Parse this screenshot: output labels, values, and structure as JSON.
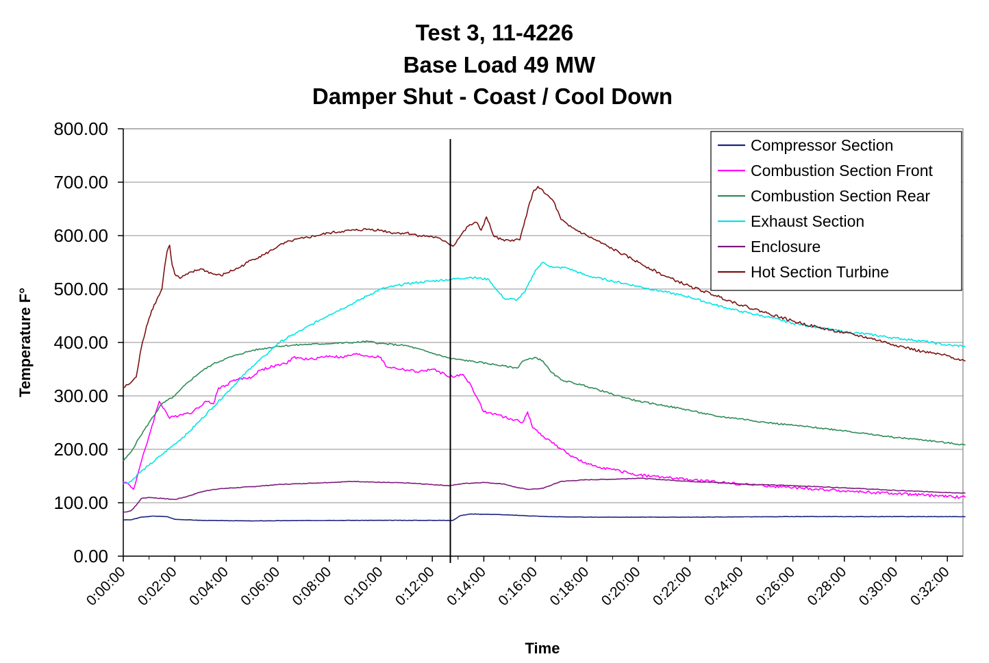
{
  "chart_data": {
    "type": "line",
    "title_lines": [
      "Test 3, 11-4226",
      "Base Load 49 MW",
      "Damper Shut - Coast / Cool Down"
    ],
    "xlabel": "Time",
    "ylabel": "Temperature F°",
    "ylim": [
      0,
      800
    ],
    "y_ticks": [
      "0.00",
      "100.00",
      "200.00",
      "300.00",
      "400.00",
      "500.00",
      "600.00",
      "700.00",
      "800.00"
    ],
    "x_range_minutes": [
      0,
      32.7
    ],
    "x_ticks": [
      "0:00:00",
      "0:02:00",
      "0:04:00",
      "0:06:00",
      "0:08:00",
      "0:10:00",
      "0:12:00",
      "0:14:00",
      "0:16:00",
      "0:18:00",
      "0:20:00",
      "0:22:00",
      "0:24:00",
      "0:26:00",
      "0:28:00",
      "0:30:00",
      "0:32:00"
    ],
    "grid": "horizontal",
    "legend_position": "top-right",
    "vertical_marker_x_minutes": 12.7,
    "series": [
      {
        "name": "Compressor Section",
        "color": "#1a237e",
        "points": [
          [
            0,
            68
          ],
          [
            0.3,
            68
          ],
          [
            0.7,
            73
          ],
          [
            1.2,
            75
          ],
          [
            1.7,
            74
          ],
          [
            2.0,
            69
          ],
          [
            3,
            67
          ],
          [
            5,
            66
          ],
          [
            8,
            67
          ],
          [
            10,
            67
          ],
          [
            12.6,
            67
          ],
          [
            12.8,
            67
          ],
          [
            13.1,
            76
          ],
          [
            13.5,
            79
          ],
          [
            14.5,
            78
          ],
          [
            15.5,
            76
          ],
          [
            16.5,
            74
          ],
          [
            18,
            73
          ],
          [
            22,
            73
          ],
          [
            26,
            74
          ],
          [
            30,
            74
          ],
          [
            32.7,
            74
          ]
        ]
      },
      {
        "name": "Combustion Section Front",
        "color": "#ff00ff",
        "points": [
          [
            0,
            140
          ],
          [
            0.2,
            135
          ],
          [
            0.4,
            125
          ],
          [
            0.6,
            160
          ],
          [
            1.0,
            225
          ],
          [
            1.4,
            290
          ],
          [
            1.6,
            275
          ],
          [
            1.8,
            258
          ],
          [
            2.2,
            265
          ],
          [
            2.7,
            270
          ],
          [
            3.2,
            290
          ],
          [
            3.5,
            285
          ],
          [
            3.7,
            315
          ],
          [
            4.0,
            320
          ],
          [
            4.3,
            330
          ],
          [
            5.0,
            335
          ],
          [
            5.3,
            348
          ],
          [
            5.8,
            355
          ],
          [
            6.3,
            360
          ],
          [
            6.6,
            372
          ],
          [
            7.2,
            368
          ],
          [
            8,
            375
          ],
          [
            8.5,
            372
          ],
          [
            9,
            378
          ],
          [
            10,
            372
          ],
          [
            10.2,
            355
          ],
          [
            10.8,
            350
          ],
          [
            11.5,
            345
          ],
          [
            12,
            350
          ],
          [
            12.5,
            340
          ],
          [
            12.8,
            335
          ],
          [
            13.2,
            340
          ],
          [
            13.5,
            320
          ],
          [
            13.7,
            300
          ],
          [
            14.0,
            270
          ],
          [
            14.5,
            265
          ],
          [
            14.8,
            260
          ],
          [
            15.2,
            255
          ],
          [
            15.5,
            250
          ],
          [
            15.7,
            270
          ],
          [
            15.9,
            240
          ],
          [
            16.3,
            225
          ],
          [
            16.6,
            215
          ],
          [
            17.0,
            200
          ],
          [
            17.5,
            185
          ],
          [
            18,
            172
          ],
          [
            19,
            162
          ],
          [
            20,
            152
          ],
          [
            22,
            143
          ],
          [
            24,
            135
          ],
          [
            26,
            128
          ],
          [
            28,
            122
          ],
          [
            30,
            117
          ],
          [
            32.7,
            110
          ]
        ]
      },
      {
        "name": "Combustion Section Rear",
        "color": "#2e8b57",
        "points": [
          [
            0,
            178
          ],
          [
            0.3,
            195
          ],
          [
            0.6,
            220
          ],
          [
            1.0,
            250
          ],
          [
            1.5,
            285
          ],
          [
            2.0,
            300
          ],
          [
            2.5,
            325
          ],
          [
            3.0,
            345
          ],
          [
            3.5,
            360
          ],
          [
            4,
            370
          ],
          [
            4.5,
            378
          ],
          [
            5,
            385
          ],
          [
            6,
            393
          ],
          [
            7,
            396
          ],
          [
            8,
            398
          ],
          [
            9,
            400
          ],
          [
            9.5,
            402
          ],
          [
            10,
            398
          ],
          [
            11,
            394
          ],
          [
            12,
            380
          ],
          [
            12.7,
            370
          ],
          [
            13.5,
            365
          ],
          [
            14.5,
            358
          ],
          [
            15.3,
            352
          ],
          [
            15.5,
            365
          ],
          [
            16,
            372
          ],
          [
            16.3,
            365
          ],
          [
            16.6,
            345
          ],
          [
            17,
            330
          ],
          [
            18,
            318
          ],
          [
            19,
            303
          ],
          [
            20,
            290
          ],
          [
            21,
            282
          ],
          [
            22,
            273
          ],
          [
            23,
            262
          ],
          [
            24,
            257
          ],
          [
            25,
            250
          ],
          [
            26,
            245
          ],
          [
            27,
            240
          ],
          [
            28,
            235
          ],
          [
            29,
            228
          ],
          [
            30,
            222
          ],
          [
            31,
            218
          ],
          [
            32,
            212
          ],
          [
            32.7,
            208
          ]
        ]
      },
      {
        "name": "Exhaust Section",
        "color": "#00e5e5",
        "points": [
          [
            0,
            135
          ],
          [
            0.3,
            140
          ],
          [
            0.6,
            155
          ],
          [
            1.0,
            170
          ],
          [
            1.5,
            190
          ],
          [
            2.0,
            210
          ],
          [
            2.5,
            230
          ],
          [
            3.0,
            255
          ],
          [
            3.5,
            280
          ],
          [
            4,
            305
          ],
          [
            4.5,
            330
          ],
          [
            5,
            355
          ],
          [
            5.5,
            375
          ],
          [
            6,
            398
          ],
          [
            6.5,
            412
          ],
          [
            7,
            425
          ],
          [
            8,
            452
          ],
          [
            9,
            475
          ],
          [
            9.5,
            488
          ],
          [
            10,
            500
          ],
          [
            11,
            510
          ],
          [
            12,
            515
          ],
          [
            12.7,
            518
          ],
          [
            13.5,
            522
          ],
          [
            14.2,
            518
          ],
          [
            14.5,
            498
          ],
          [
            14.8,
            482
          ],
          [
            15.3,
            480
          ],
          [
            15.6,
            495
          ],
          [
            16,
            535
          ],
          [
            16.3,
            550
          ],
          [
            16.7,
            540
          ],
          [
            17.2,
            540
          ],
          [
            18,
            525
          ],
          [
            19,
            515
          ],
          [
            20,
            505
          ],
          [
            21,
            495
          ],
          [
            22,
            485
          ],
          [
            23,
            470
          ],
          [
            24,
            458
          ],
          [
            25,
            448
          ],
          [
            26,
            436
          ],
          [
            27,
            428
          ],
          [
            28,
            420
          ],
          [
            29,
            415
          ],
          [
            30,
            408
          ],
          [
            31,
            403
          ],
          [
            32,
            395
          ],
          [
            32.7,
            393
          ]
        ]
      },
      {
        "name": "Enclosure",
        "color": "#7b1a7b",
        "points": [
          [
            0,
            82
          ],
          [
            0.3,
            85
          ],
          [
            0.5,
            95
          ],
          [
            0.7,
            108
          ],
          [
            1.0,
            110
          ],
          [
            1.5,
            108
          ],
          [
            2.0,
            106
          ],
          [
            2.5,
            112
          ],
          [
            3.0,
            120
          ],
          [
            3.5,
            125
          ],
          [
            4,
            127
          ],
          [
            5,
            130
          ],
          [
            6,
            134
          ],
          [
            7,
            136
          ],
          [
            8,
            138
          ],
          [
            9,
            140
          ],
          [
            10,
            138
          ],
          [
            11,
            137
          ],
          [
            12,
            134
          ],
          [
            12.7,
            132
          ],
          [
            13.2,
            136
          ],
          [
            14.0,
            138
          ],
          [
            14.8,
            135
          ],
          [
            15.3,
            128
          ],
          [
            15.8,
            125
          ],
          [
            16.3,
            127
          ],
          [
            17,
            140
          ],
          [
            18,
            143
          ],
          [
            19,
            144
          ],
          [
            20,
            146
          ],
          [
            21,
            143
          ],
          [
            22,
            140
          ],
          [
            23,
            138
          ],
          [
            24,
            135
          ],
          [
            26,
            132
          ],
          [
            28,
            128
          ],
          [
            30,
            123
          ],
          [
            32.7,
            118
          ]
        ]
      },
      {
        "name": "Hot Section Turbine",
        "color": "#7b1111",
        "points": [
          [
            0,
            315
          ],
          [
            0.3,
            325
          ],
          [
            0.5,
            335
          ],
          [
            0.7,
            390
          ],
          [
            0.9,
            430
          ],
          [
            1.1,
            460
          ],
          [
            1.3,
            480
          ],
          [
            1.5,
            500
          ],
          [
            1.6,
            540
          ],
          [
            1.7,
            570
          ],
          [
            1.8,
            582
          ],
          [
            1.9,
            545
          ],
          [
            2.0,
            528
          ],
          [
            2.2,
            520
          ],
          [
            2.5,
            528
          ],
          [
            3.0,
            538
          ],
          [
            3.5,
            528
          ],
          [
            3.8,
            525
          ],
          [
            4,
            530
          ],
          [
            4.5,
            540
          ],
          [
            5,
            555
          ],
          [
            5.5,
            565
          ],
          [
            6,
            580
          ],
          [
            6.5,
            590
          ],
          [
            7,
            595
          ],
          [
            7.5,
            600
          ],
          [
            8,
            605
          ],
          [
            8.5,
            608
          ],
          [
            9,
            610
          ],
          [
            9.5,
            612
          ],
          [
            10,
            610
          ],
          [
            10.5,
            605
          ],
          [
            11,
            605
          ],
          [
            11.5,
            600
          ],
          [
            12,
            598
          ],
          [
            12.5,
            590
          ],
          [
            12.8,
            580
          ],
          [
            13.1,
            600
          ],
          [
            13.4,
            618
          ],
          [
            13.7,
            625
          ],
          [
            13.9,
            610
          ],
          [
            14.1,
            635
          ],
          [
            14.4,
            598
          ],
          [
            14.8,
            590
          ],
          [
            15.1,
            592
          ],
          [
            15.4,
            592
          ],
          [
            15.6,
            630
          ],
          [
            15.9,
            680
          ],
          [
            16.1,
            692
          ],
          [
            16.4,
            678
          ],
          [
            16.7,
            665
          ],
          [
            17.0,
            630
          ],
          [
            17.3,
            618
          ],
          [
            18,
            600
          ],
          [
            19,
            575
          ],
          [
            20,
            550
          ],
          [
            21,
            525
          ],
          [
            22,
            505
          ],
          [
            23,
            488
          ],
          [
            24,
            470
          ],
          [
            25,
            455
          ],
          [
            26,
            440
          ],
          [
            27,
            428
          ],
          [
            28,
            418
          ],
          [
            29,
            408
          ],
          [
            30,
            395
          ],
          [
            31,
            383
          ],
          [
            32,
            375
          ],
          [
            32.7,
            365
          ]
        ]
      }
    ]
  }
}
